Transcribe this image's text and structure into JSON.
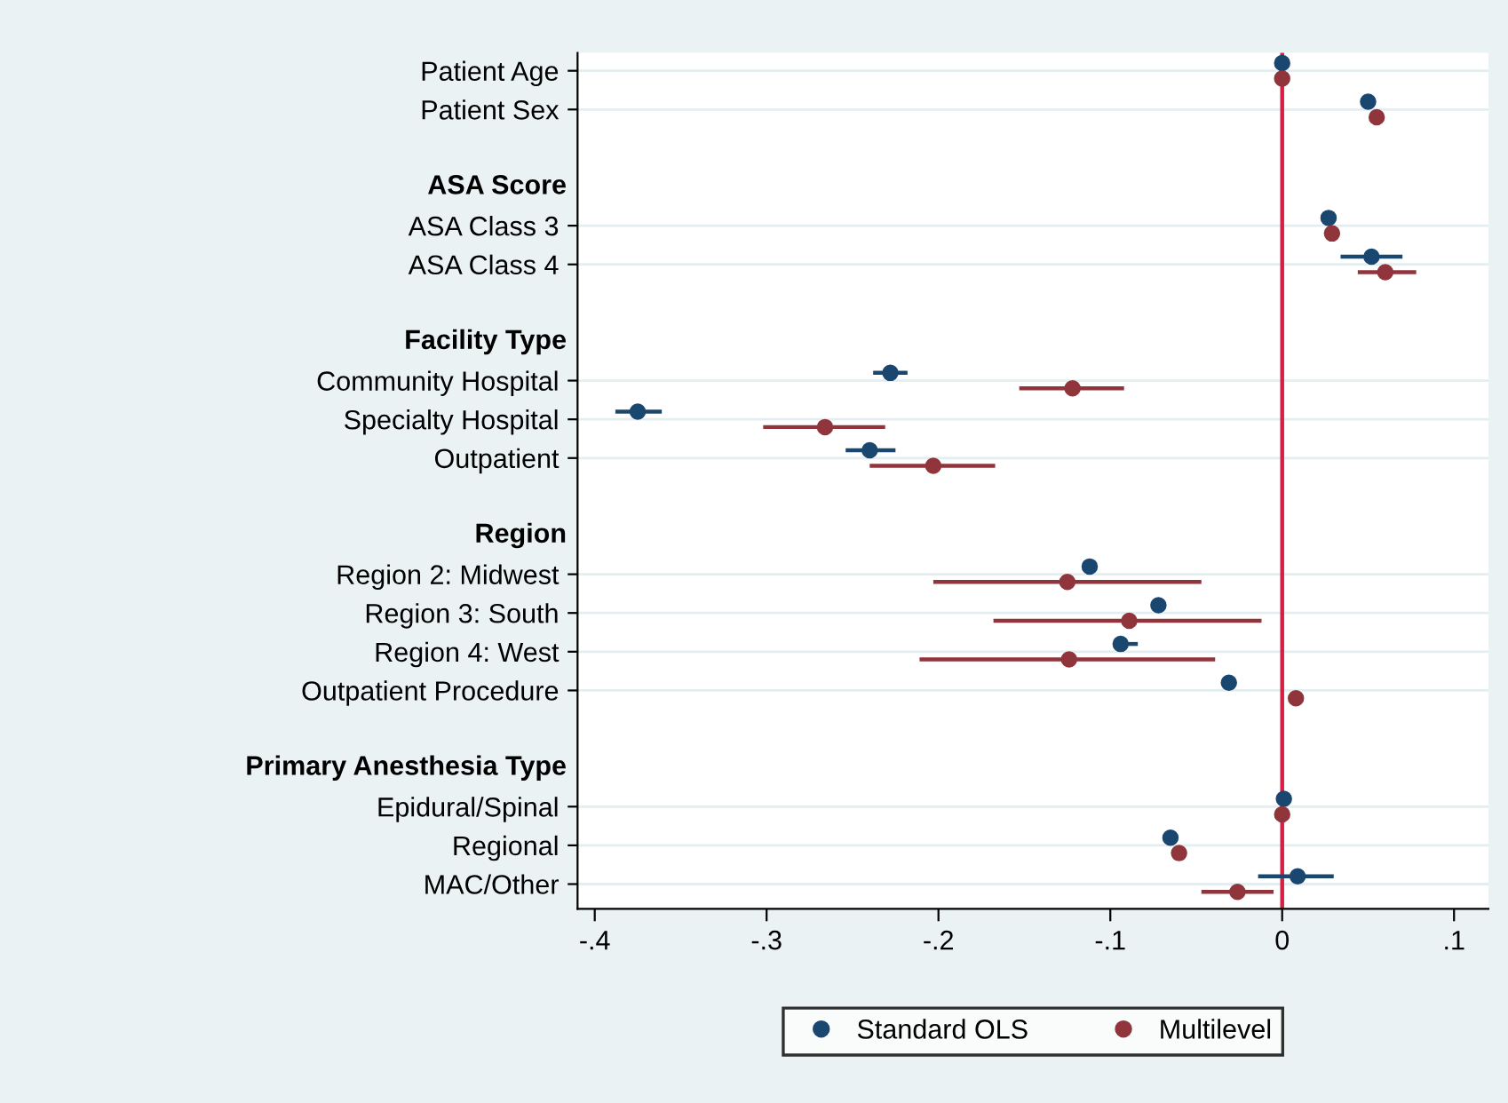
{
  "chart_data": {
    "type": "scatter",
    "orientation": "horizontal",
    "categories": [
      "Patient Age",
      "Patient Sex",
      null,
      "ASA Score",
      "ASA Class 3",
      "ASA Class 4",
      null,
      "Facility Type",
      "Community Hospital",
      "Specialty Hospital",
      "Outpatient",
      null,
      "Region",
      "Region 2: Midwest",
      "Region 3: South",
      "Region 4: West",
      "Outpatient Procedure",
      null,
      "Primary Anesthesia Type",
      "Epidural/Spinal",
      "Regional",
      "MAC/Other"
    ],
    "series": [
      {
        "name": "Standard OLS",
        "color": "#1a476f",
        "values": [
          0,
          0.05,
          null,
          null,
          0.027,
          0.052,
          null,
          null,
          -0.228,
          -0.375,
          -0.24,
          null,
          null,
          -0.112,
          -0.072,
          -0.094,
          -0.031,
          null,
          null,
          0.001,
          -0.065,
          0.009
        ],
        "errors": [
          null,
          null,
          null,
          null,
          null,
          [
            0.034,
            0.07
          ],
          null,
          null,
          [
            -0.238,
            -0.218
          ],
          [
            -0.388,
            -0.361
          ],
          [
            -0.254,
            -0.225
          ],
          null,
          null,
          null,
          null,
          [
            -0.098,
            -0.084
          ],
          null,
          null,
          null,
          null,
          null,
          [
            -0.014,
            0.03
          ]
        ]
      },
      {
        "name": "Multilevel",
        "color": "#90353b",
        "values": [
          0,
          0.055,
          null,
          null,
          0.029,
          0.06,
          null,
          null,
          -0.122,
          -0.266,
          -0.203,
          null,
          null,
          -0.125,
          -0.089,
          -0.124,
          0.008,
          null,
          null,
          0,
          -0.06,
          -0.026
        ],
        "errors": [
          null,
          null,
          null,
          null,
          null,
          [
            0.044,
            0.078
          ],
          null,
          null,
          [
            -0.153,
            -0.092
          ],
          [
            -0.302,
            -0.231
          ],
          [
            -0.24,
            -0.167
          ],
          null,
          null,
          [
            -0.203,
            -0.047
          ],
          [
            -0.168,
            -0.012
          ],
          [
            -0.211,
            -0.039
          ],
          null,
          null,
          null,
          null,
          null,
          [
            -0.047,
            -0.005
          ]
        ]
      }
    ],
    "xlim": [
      -0.41,
      0.12
    ],
    "xticks": [
      {
        "value": -0.4,
        "label": "-.4"
      },
      {
        "value": -0.3,
        "label": "-.3"
      },
      {
        "value": -0.2,
        "label": "-.2"
      },
      {
        "value": -0.1,
        "label": "-.1"
      },
      0,
      {
        "value": 0.1,
        "label": ".1"
      }
    ],
    "ref_lines": [
      {
        "axis": "x",
        "value": 0,
        "color": "#d81e44"
      }
    ],
    "grid": "y",
    "legend": "bottom",
    "marker": "circle"
  }
}
